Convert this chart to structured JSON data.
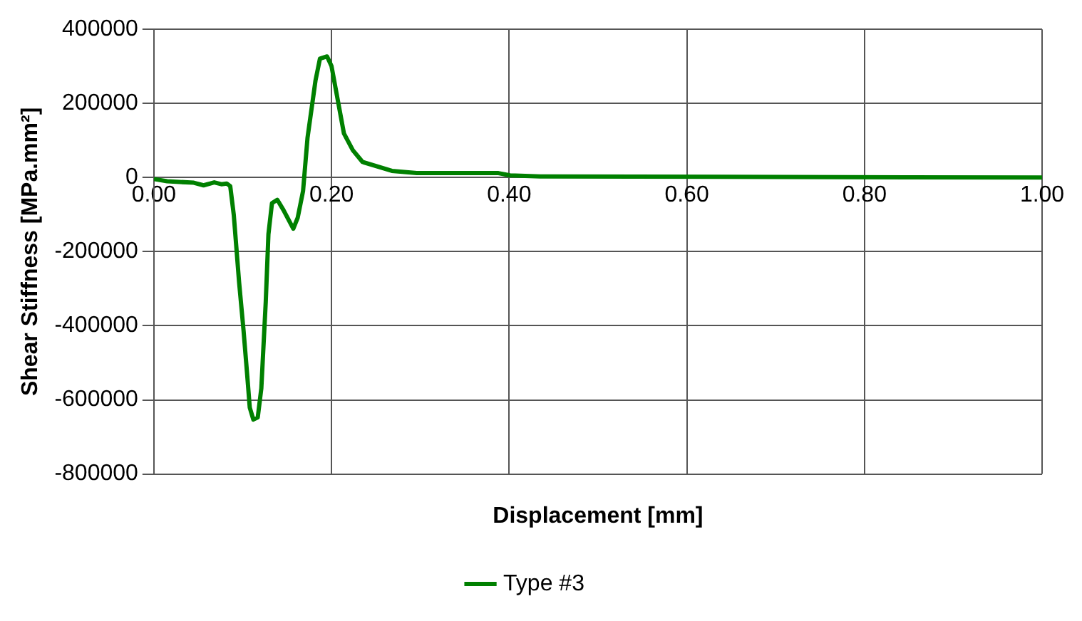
{
  "chart_data": {
    "type": "line",
    "xlabel": "Displacement [mm]",
    "ylabel": "Shear Stiffness [MPa.mm²]",
    "xlim": [
      0,
      1
    ],
    "xticks": [
      {
        "value": 0,
        "label": "0.00"
      },
      {
        "value": 0.2,
        "label": "0.20"
      },
      {
        "value": 0.4,
        "label": "0.40"
      },
      {
        "value": 0.6,
        "label": "0.60"
      },
      {
        "value": 0.8,
        "label": "0.80"
      },
      {
        "value": 1,
        "label": "1.00"
      }
    ],
    "ylim": [
      -800000,
      400000
    ],
    "yticks": [
      -800000,
      -600000,
      -400000,
      -200000,
      0,
      200000,
      400000
    ],
    "grid": true,
    "legend": "bottom",
    "marker": "none",
    "line_style": "solid",
    "series": [
      {
        "name": "Type #3",
        "color": "#008000",
        "x": [
          0,
          0.015,
          0.045,
          0.056,
          0.068,
          0.076,
          0.082,
          0.086,
          0.09,
          0.096,
          0.101,
          0.105,
          0.108,
          0.112,
          0.117,
          0.121,
          0.126,
          0.129,
          0.133,
          0.139,
          0.146,
          0.157,
          0.162,
          0.168,
          0.173,
          0.182,
          0.187,
          0.195,
          0.2,
          0.207,
          0.214,
          0.224,
          0.235,
          0.268,
          0.296,
          0.388,
          0.401,
          0.435,
          1
        ],
        "values": [
          -4000,
          -10000,
          -14000,
          -21000,
          -13000,
          -18000,
          -16000,
          -23000,
          -101000,
          -283000,
          -413000,
          -530000,
          -621000,
          -653000,
          -647000,
          -569000,
          -335000,
          -153000,
          -69000,
          -60000,
          -88000,
          -138000,
          -108000,
          -36000,
          107000,
          262000,
          321000,
          327000,
          301000,
          210000,
          119000,
          74000,
          42000,
          18000,
          12000,
          12000,
          6000,
          3000,
          0
        ]
      }
    ]
  }
}
